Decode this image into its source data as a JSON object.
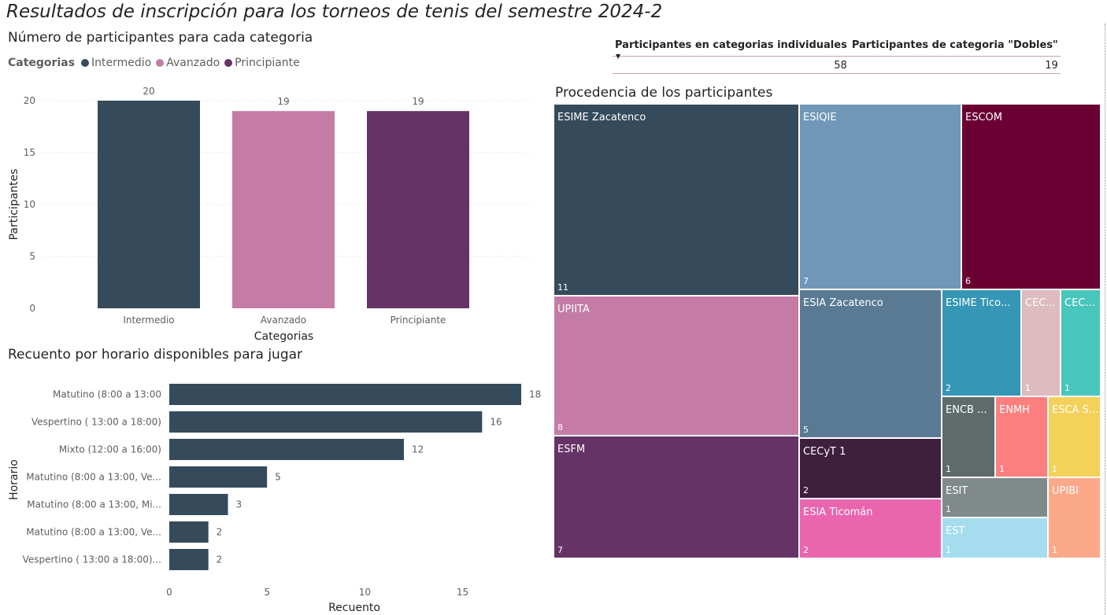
{
  "page": {
    "title": "Resultados de inscripción para los torneos de tenis del semestre 2024-2"
  },
  "legend": {
    "title": "Categorias",
    "items": [
      {
        "label": "Intermedio",
        "color": "#354B5B"
      },
      {
        "label": "Avanzado",
        "color": "#C47CA6"
      },
      {
        "label": "Principiante",
        "color": "#653366"
      }
    ]
  },
  "kpi_table": {
    "headers": [
      "Participantes en categorias individuales",
      "Participantes de categoria \"Dobles\""
    ],
    "values": [
      "58",
      "19"
    ]
  },
  "chart_data": [
    {
      "type": "bar",
      "title": "Número de participantes para cada categoria",
      "xlabel": "Categorias",
      "ylabel": "Participantes",
      "categories": [
        "Intermedio",
        "Avanzado",
        "Principiante"
      ],
      "values": [
        20,
        19,
        19
      ],
      "colors": [
        "#354B5B",
        "#C47CA6",
        "#653366"
      ],
      "ylim": [
        0,
        20
      ],
      "yticks": [
        0,
        5,
        10,
        15,
        20
      ],
      "grid": true,
      "legend": "top-left"
    },
    {
      "type": "bar",
      "orientation": "horizontal",
      "title": "Recuento por horario disponibles para jugar",
      "xlabel": "Recuento",
      "ylabel": "Horario",
      "categories": [
        "Matutino (8:00 a 13:00",
        "Vespertino ( 13:00 a 18:00)",
        "Mixto (12:00 a 16:00)",
        "Matutino (8:00 a 13:00, Ve...",
        "Matutino (8:00 a 13:00, Mi...",
        "Matutino (8:00 a 13:00, Ve...",
        "Vespertino ( 13:00 a 18:00)..."
      ],
      "values": [
        18,
        16,
        12,
        5,
        3,
        2,
        2
      ],
      "color": "#354B5B",
      "xlim": [
        0,
        18
      ],
      "xticks": [
        0,
        5,
        10,
        15
      ]
    },
    {
      "type": "treemap",
      "title": "Procedencia de los participantes",
      "items": [
        {
          "label": "ESIME Zacatenco",
          "value": 11,
          "color": "#354B5B"
        },
        {
          "label": "ESIQIE",
          "value": 7,
          "color": "#7097B8"
        },
        {
          "label": "ESCOM",
          "value": 6,
          "color": "#6A0032"
        },
        {
          "label": "UPIITA",
          "value": 8,
          "color": "#C47CA6"
        },
        {
          "label": "ESIA Zacatenco",
          "value": 5,
          "color": "#5A7A93"
        },
        {
          "label": "ESIME Tico...",
          "value": 2,
          "color": "#3597B5"
        },
        {
          "label": "CEC...",
          "value": 1,
          "color": "#DDBBBF"
        },
        {
          "label": "CEC...",
          "value": 1,
          "color": "#48C6BC"
        },
        {
          "label": "ENCB ...",
          "value": 1,
          "color": "#5F6B6B"
        },
        {
          "label": "ENMH",
          "value": 1,
          "color": "#FB7F7F"
        },
        {
          "label": "ESCA S...",
          "value": 1,
          "color": "#F3D15A"
        },
        {
          "label": "ESFM",
          "value": 7,
          "color": "#653366"
        },
        {
          "label": "CECyT 1",
          "value": 2,
          "color": "#3E1F3E"
        },
        {
          "label": "ESIT",
          "value": 1,
          "color": "#818A8A"
        },
        {
          "label": "UPIBI",
          "value": 1,
          "color": "#FCA98A"
        },
        {
          "label": "ESIA Ticomán",
          "value": 2,
          "color": "#E966AF"
        },
        {
          "label": "EST",
          "value": 1,
          "color": "#A5DDEE"
        }
      ]
    }
  ]
}
